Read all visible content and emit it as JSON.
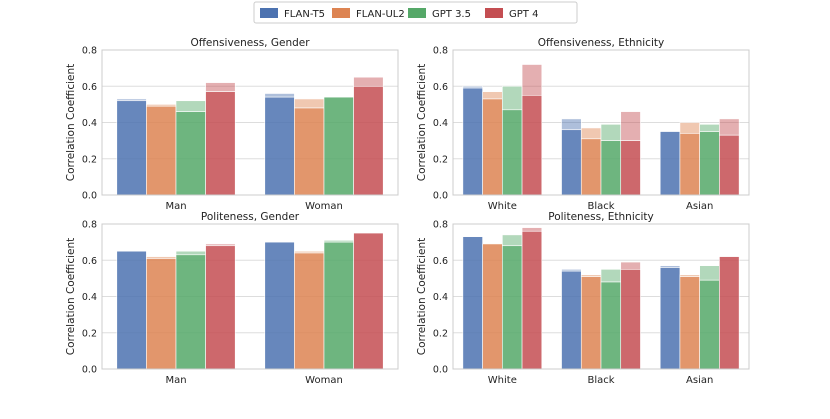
{
  "chart_data": {
    "type": "bar",
    "legend": {
      "placement": "top-center",
      "entries": [
        {
          "name": "FLAN-T5",
          "color": "#4c72b0"
        },
        {
          "name": "FLAN-UL2",
          "color": "#dd8452"
        },
        {
          "name": "GPT 3.5",
          "color": "#55a868"
        },
        {
          "name": "GPT 4",
          "color": "#c44e52"
        }
      ]
    },
    "panels": [
      {
        "id": "off-gender",
        "title": "Offensiveness, Gender",
        "ylabel": "Correlation Coefficient",
        "ylim": [
          0,
          0.8
        ],
        "yticks": [
          "0.0",
          "0.2",
          "0.4",
          "0.6",
          "0.8"
        ],
        "categories": [
          "Man",
          "Woman"
        ],
        "series": [
          {
            "name": "FLAN-T5",
            "values": [
              0.52,
              0.54
            ],
            "light_values": [
              0.53,
              0.56
            ]
          },
          {
            "name": "FLAN-UL2",
            "values": [
              0.49,
              0.48
            ],
            "light_values": [
              0.5,
              0.53
            ]
          },
          {
            "name": "GPT 3.5",
            "values": [
              0.46,
              0.54
            ],
            "light_values": [
              0.52,
              0.54
            ]
          },
          {
            "name": "GPT 4",
            "values": [
              0.57,
              0.6
            ],
            "light_values": [
              0.62,
              0.65
            ]
          }
        ]
      },
      {
        "id": "off-ethnicity",
        "title": "Offensiveness, Ethnicity",
        "ylabel": "Correlation Coefficient",
        "ylim": [
          0,
          0.8
        ],
        "yticks": [
          "0.0",
          "0.2",
          "0.4",
          "0.6",
          "0.8"
        ],
        "categories": [
          "White",
          "Black",
          "Asian"
        ],
        "series": [
          {
            "name": "FLAN-T5",
            "values": [
              0.59,
              0.36,
              0.35
            ],
            "light_values": [
              0.6,
              0.42,
              0.35
            ]
          },
          {
            "name": "FLAN-UL2",
            "values": [
              0.53,
              0.31,
              0.34
            ],
            "light_values": [
              0.57,
              0.37,
              0.4
            ]
          },
          {
            "name": "GPT 3.5",
            "values": [
              0.47,
              0.3,
              0.35
            ],
            "light_values": [
              0.6,
              0.39,
              0.39
            ]
          },
          {
            "name": "GPT 4",
            "values": [
              0.55,
              0.3,
              0.33
            ],
            "light_values": [
              0.72,
              0.46,
              0.42
            ]
          }
        ]
      },
      {
        "id": "pol-gender",
        "title": "Politeness, Gender",
        "ylabel": "Correlation Coefficient",
        "ylim": [
          0,
          0.8
        ],
        "yticks": [
          "0.0",
          "0.2",
          "0.4",
          "0.6",
          "0.8"
        ],
        "categories": [
          "Man",
          "Woman"
        ],
        "series": [
          {
            "name": "FLAN-T5",
            "values": [
              0.65,
              0.7
            ],
            "light_values": [
              0.65,
              0.7
            ]
          },
          {
            "name": "FLAN-UL2",
            "values": [
              0.61,
              0.64
            ],
            "light_values": [
              0.62,
              0.65
            ]
          },
          {
            "name": "GPT 3.5",
            "values": [
              0.63,
              0.7
            ],
            "light_values": [
              0.65,
              0.71
            ]
          },
          {
            "name": "GPT 4",
            "values": [
              0.68,
              0.75
            ],
            "light_values": [
              0.69,
              0.75
            ]
          }
        ]
      },
      {
        "id": "pol-ethnicity",
        "title": "Politeness, Ethnicity",
        "ylabel": "Correlation Coefficient",
        "ylim": [
          0,
          0.8
        ],
        "yticks": [
          "0.0",
          "0.2",
          "0.4",
          "0.6",
          "0.8"
        ],
        "categories": [
          "White",
          "Black",
          "Asian"
        ],
        "series": [
          {
            "name": "FLAN-T5",
            "values": [
              0.73,
              0.54,
              0.56
            ],
            "light_values": [
              0.73,
              0.55,
              0.57
            ]
          },
          {
            "name": "FLAN-UL2",
            "values": [
              0.69,
              0.51,
              0.51
            ],
            "light_values": [
              0.69,
              0.52,
              0.52
            ]
          },
          {
            "name": "GPT 3.5",
            "values": [
              0.68,
              0.48,
              0.49
            ],
            "light_values": [
              0.74,
              0.55,
              0.57
            ]
          },
          {
            "name": "GPT 4",
            "values": [
              0.76,
              0.55,
              0.62
            ],
            "light_values": [
              0.78,
              0.59,
              0.62
            ]
          }
        ]
      }
    ]
  }
}
